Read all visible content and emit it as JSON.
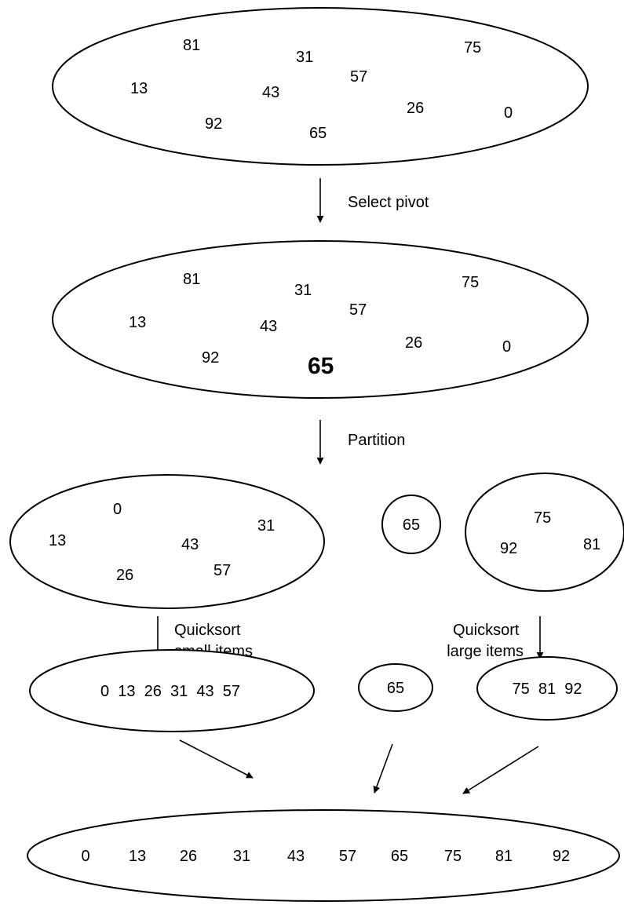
{
  "stages": {
    "initial": {
      "items": [
        "81",
        "31",
        "75",
        "13",
        "43",
        "57",
        "26",
        "0",
        "92",
        "65"
      ]
    },
    "pivot_selected": {
      "items": [
        "81",
        "31",
        "75",
        "13",
        "43",
        "57",
        "26",
        "0",
        "92"
      ],
      "pivot": "65"
    },
    "partitioned": {
      "small": [
        "0",
        "31",
        "13",
        "43",
        "26",
        "57"
      ],
      "pivot": "65",
      "large": [
        "75",
        "92",
        "81"
      ]
    },
    "sorted_parts": {
      "small": "0  13  26  31  43  57",
      "pivot": "65",
      "large": "75  81  92"
    },
    "final": {
      "items": [
        "0",
        "13",
        "26",
        "31",
        "43",
        "57",
        "65",
        "75",
        "81",
        "92"
      ]
    }
  },
  "steps": {
    "select_pivot": "Select pivot",
    "partition": "Partition",
    "quicksort_small": [
      "Quicksort",
      "small items"
    ],
    "quicksort_large": [
      "Quicksort",
      "large items"
    ]
  }
}
